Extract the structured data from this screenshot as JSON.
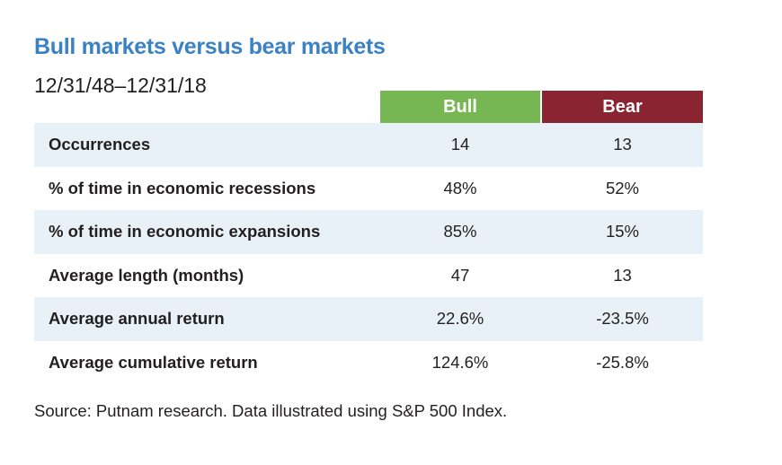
{
  "title": "Bull markets versus bear markets",
  "subtitle": "12/31/48–12/31/18",
  "colors": {
    "title": "#3a82c4",
    "bull": "#77b753",
    "bear": "#8a2430",
    "row_shade": "#e8f1f8"
  },
  "columns": [
    "Bull",
    "Bear"
  ],
  "rows": [
    {
      "label": "Occurrences",
      "bull": "14",
      "bear": "13"
    },
    {
      "label": "% of time in economic recessions",
      "bull": "48%",
      "bear": "52%"
    },
    {
      "label": "% of time in economic expansions",
      "bull": "85%",
      "bear": "15%"
    },
    {
      "label": "Average length (months)",
      "bull": "47",
      "bear": "13"
    },
    {
      "label": "Average annual return",
      "bull": "22.6%",
      "bear": "-23.5%"
    },
    {
      "label": "Average cumulative return",
      "bull": "124.6%",
      "bear": "-25.8%"
    }
  ],
  "source": "Source: Putnam research. Data illustrated using S&P 500 Index.",
  "chart_data": {
    "type": "table",
    "title": "Bull markets versus bear markets",
    "subtitle": "12/31/48–12/31/18",
    "columns": [
      "",
      "Bull",
      "Bear"
    ],
    "rows": [
      [
        "Occurrences",
        "14",
        "13"
      ],
      [
        "% of time in economic recessions",
        "48%",
        "52%"
      ],
      [
        "% of time in economic expansions",
        "85%",
        "15%"
      ],
      [
        "Average length (months)",
        "47",
        "13"
      ],
      [
        "Average annual return",
        "22.6%",
        "-23.5%"
      ],
      [
        "Average cumulative return",
        "124.6%",
        "-25.8%"
      ]
    ],
    "source": "Source: Putnam research. Data illustrated using S&P 500 Index."
  }
}
